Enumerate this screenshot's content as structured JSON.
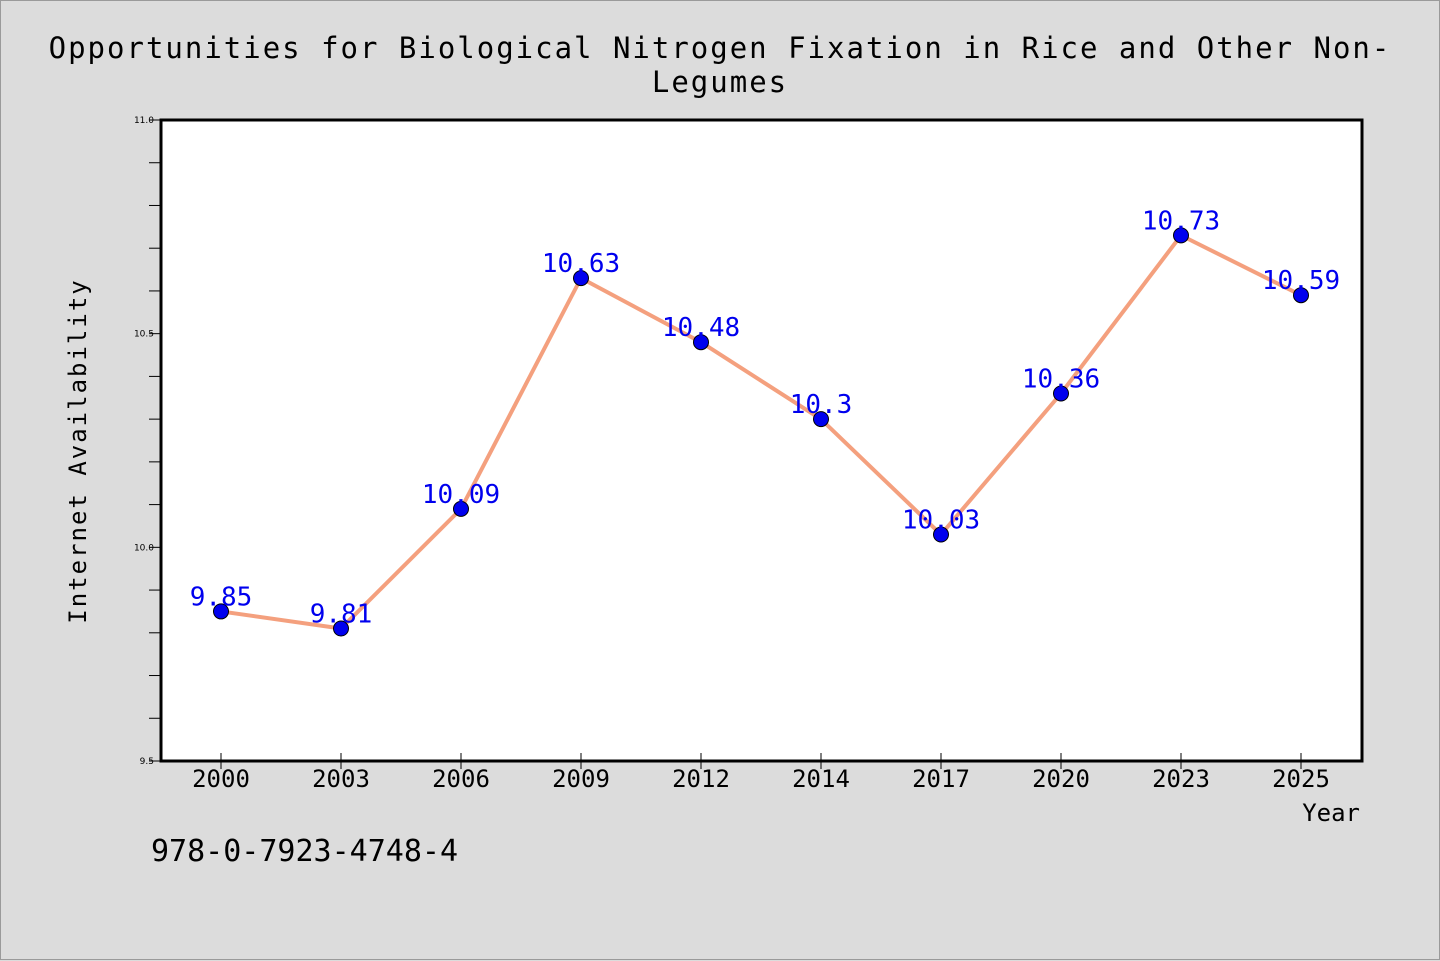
{
  "chart_data": {
    "type": "line",
    "title": "Opportunities for Biological Nitrogen Fixation in Rice and Other Non-Legumes",
    "xlabel": "Year",
    "ylabel": "Internet Availability",
    "categories": [
      "2000",
      "2003",
      "2006",
      "2009",
      "2012",
      "2014",
      "2017",
      "2020",
      "2023",
      "2025"
    ],
    "values": [
      9.85,
      9.81,
      10.09,
      10.63,
      10.48,
      10.3,
      10.03,
      10.36,
      10.73,
      10.59
    ],
    "data_labels": [
      "9.85",
      "9.81",
      "10.09",
      "10.63",
      "10.48",
      "10.3",
      "10.03",
      "10.36",
      "10.73",
      "10.59"
    ],
    "ylim": [
      9.5,
      11.0
    ],
    "yticks": [
      "9.5",
      "10.0",
      "10.5",
      "11.0"
    ],
    "grid": false,
    "line_color": "#f4a07e",
    "marker_color": "#0000ee",
    "label_color": "#0000ee"
  },
  "footer": {
    "code": "978-0-7923-4748-4"
  }
}
